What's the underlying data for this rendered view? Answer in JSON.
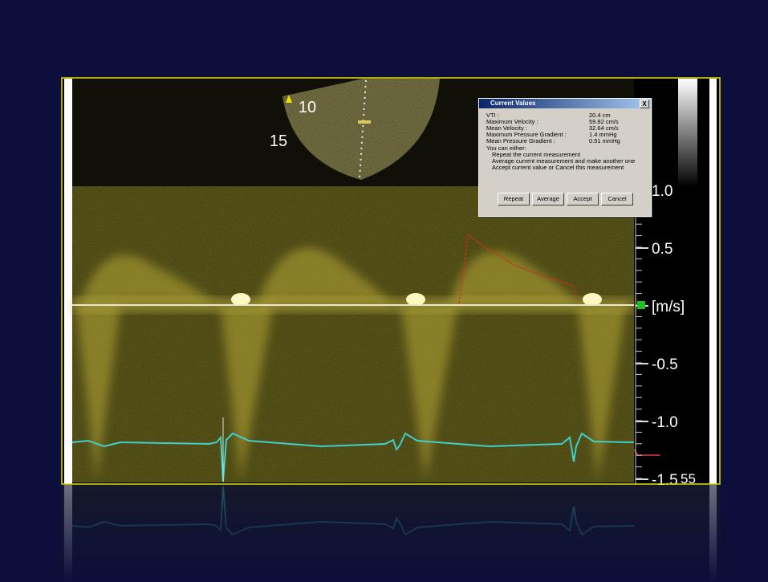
{
  "fan": {
    "depth_labels": [
      "10",
      "15"
    ]
  },
  "scale": {
    "labels": [
      "1.0",
      "0.5",
      "[m/s]",
      "-0.5",
      "-1.0",
      "-1.5"
    ],
    "corner_label": "55"
  },
  "dialog": {
    "title": "Current Values",
    "close": "X",
    "rows": [
      [
        "VTI :",
        "20.4 cm"
      ],
      [
        "Maximum Velocity :",
        "59.82 cm/s"
      ],
      [
        "Mean Velocity :",
        "32.64 cm/s"
      ],
      [
        "Maximum Pressure Gradient :",
        "1.4 mmHg"
      ],
      [
        "Mean Pressure Gradient :",
        "0.51 mmHg"
      ]
    ],
    "prompt": "You can either:",
    "options": [
      "Repeat the current measurement",
      "Average current measurement and make another one",
      "Accept current value or Cancel this measurement"
    ],
    "buttons": [
      "Repeat",
      "Average",
      "Accept",
      "Cancel"
    ]
  }
}
